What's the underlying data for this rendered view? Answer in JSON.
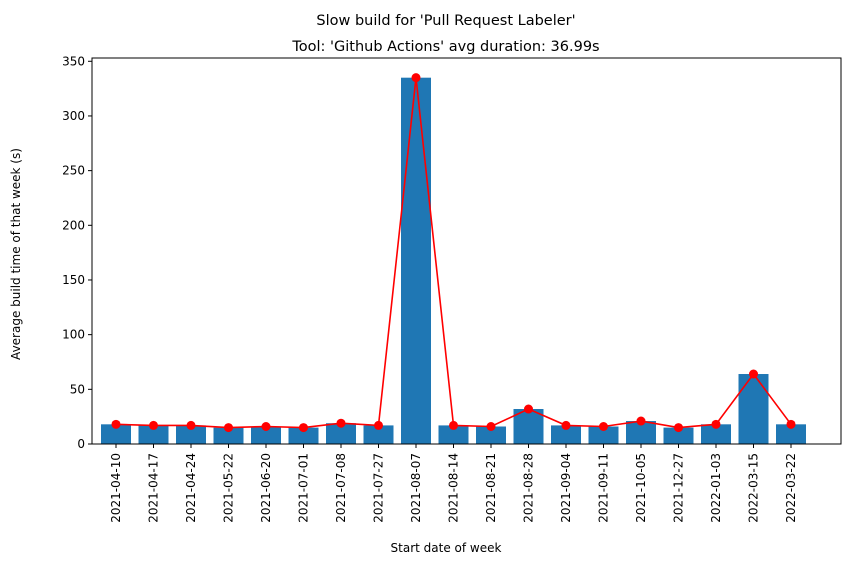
{
  "chart_data": {
    "type": "bar",
    "suptitle": "Slow build for 'Pull Request Labeler'",
    "title": "Tool: 'Github Actions' avg duration: 36.99s",
    "xlabel": "Start date of week",
    "ylabel": "Average build time of that week (s)",
    "ylim": [
      0,
      353
    ],
    "yticks": [
      0,
      50,
      100,
      150,
      200,
      250,
      300,
      350
    ],
    "grid": false,
    "categories": [
      "2021-04-10",
      "2021-04-17",
      "2021-04-24",
      "2021-05-22",
      "2021-06-20",
      "2021-07-01",
      "2021-07-08",
      "2021-07-27",
      "2021-08-07",
      "2021-08-14",
      "2021-08-21",
      "2021-08-28",
      "2021-09-04",
      "2021-09-11",
      "2021-10-05",
      "2021-12-27",
      "2022-01-03",
      "2022-03-15",
      "2022-03-22"
    ],
    "values": [
      18,
      17,
      17,
      15,
      16,
      15,
      19,
      17,
      335,
      17,
      16,
      32,
      17,
      16,
      21,
      15,
      18,
      64,
      18
    ],
    "bar_color": "#1f77b4",
    "line_color": "#ff0000"
  }
}
